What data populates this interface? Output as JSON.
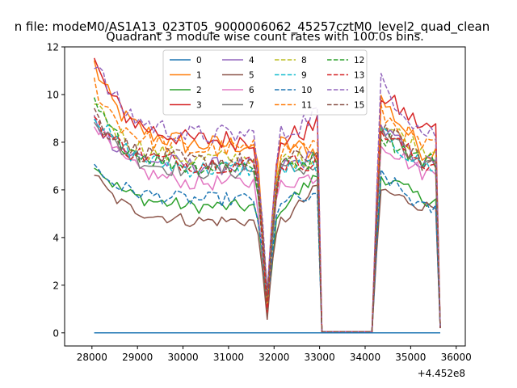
{
  "header": {
    "suptitle": "n file: modeM0/AS1A13_023T05_9000006062_45257cztM0_level2_quad_clean",
    "title": "Quadrant 3 module wise count rates with 100.0s bins."
  },
  "chart_data": {
    "type": "line",
    "title": "Quadrant 3 module wise count rates with 100.0s bins.",
    "xlabel": "",
    "ylabel": "",
    "x_offset_label": "+4.452e8",
    "xlim": [
      27400,
      36200
    ],
    "ylim": [
      -0.55,
      12.0
    ],
    "xticks": [
      28000,
      29000,
      30000,
      31000,
      32000,
      33000,
      34000,
      35000,
      36000
    ],
    "yticks": [
      0,
      2,
      4,
      6,
      8,
      10,
      12
    ],
    "xtick_labels": [
      "28000",
      "29000",
      "30000",
      "31000",
      "32000",
      "33000",
      "34000",
      "35000",
      "36000"
    ],
    "ytick_labels": [
      "0",
      "2",
      "4",
      "6",
      "8",
      "10",
      "12"
    ],
    "legend": {
      "placement": "top-center",
      "columns": 4
    },
    "grid": false,
    "segments": {
      "seg1": {
        "x_start": 28050,
        "x_end": 32950,
        "step": 100
      },
      "gap1": {
        "x_start": 33050,
        "x_end": 34150
      },
      "seg2": {
        "x_start": 34250,
        "x_end": 35650,
        "step": 100
      }
    },
    "series": [
      {
        "name": "0",
        "color": "#1f77b4",
        "dash": "solid",
        "constant": 0.0
      },
      {
        "name": "1",
        "color": "#ff7f0e",
        "dash": "solid",
        "start": 11.3,
        "plateau": 7.9,
        "pre": 7.6,
        "seg2_peak": 9.8,
        "seg2_end": 7.6
      },
      {
        "name": "2",
        "color": "#2ca02c",
        "dash": "solid",
        "start": 7.2,
        "plateau": 5.3,
        "pre": 6.6,
        "seg2_peak": 6.6,
        "seg2_end": 5.6
      },
      {
        "name": "3",
        "color": "#d62728",
        "dash": "solid",
        "start": 11.4,
        "plateau": 8.1,
        "pre": 8.7,
        "seg2_peak": 10.0,
        "seg2_end": 8.6
      },
      {
        "name": "4",
        "color": "#9467bd",
        "dash": "solid",
        "start": 9.0,
        "plateau": 7.0,
        "pre": 7.4,
        "seg2_peak": 8.6,
        "seg2_end": 7.1
      },
      {
        "name": "5",
        "color": "#8c564b",
        "dash": "solid",
        "start": 6.7,
        "plateau": 4.7,
        "pre": 6.1,
        "seg2_peak": 6.0,
        "seg2_end": 5.3
      },
      {
        "name": "6",
        "color": "#e377c2",
        "dash": "solid",
        "start": 9.0,
        "plateau": 6.3,
        "pre": 6.6,
        "seg2_peak": 8.0,
        "seg2_end": 6.7
      },
      {
        "name": "7",
        "color": "#7f7f7f",
        "dash": "solid",
        "start": 9.2,
        "plateau": 6.8,
        "pre": 7.0,
        "seg2_peak": 8.4,
        "seg2_end": 6.9
      },
      {
        "name": "8",
        "color": "#bcbd22",
        "dash": "dashed",
        "start": 9.9,
        "plateau": 7.3,
        "pre": 7.3,
        "seg2_peak": 8.8,
        "seg2_end": 7.7
      },
      {
        "name": "9",
        "color": "#17becf",
        "dash": "dashed",
        "start": 9.3,
        "plateau": 6.9,
        "pre": 7.0,
        "seg2_peak": 8.3,
        "seg2_end": 7.0
      },
      {
        "name": "10",
        "color": "#1f77b4",
        "dash": "dashed",
        "start": 7.0,
        "plateau": 5.6,
        "pre": 5.6,
        "seg2_peak": 6.7,
        "seg2_end": 5.2
      },
      {
        "name": "11",
        "color": "#ff7f0e",
        "dash": "dashed",
        "start": 10.5,
        "plateau": 7.7,
        "pre": 7.9,
        "seg2_peak": 9.2,
        "seg2_end": 7.8
      },
      {
        "name": "12",
        "color": "#2ca02c",
        "dash": "dashed",
        "start": 9.7,
        "plateau": 7.0,
        "pre": 7.3,
        "seg2_peak": 8.3,
        "seg2_end": 7.2
      },
      {
        "name": "13",
        "color": "#d62728",
        "dash": "dashed",
        "start": 9.1,
        "plateau": 7.1,
        "pre": 7.2,
        "seg2_peak": 8.5,
        "seg2_end": 7.1
      },
      {
        "name": "14",
        "color": "#9467bd",
        "dash": "dashed",
        "start": 11.5,
        "plateau": 8.3,
        "pre": 9.3,
        "seg2_peak": 10.5,
        "seg2_end": 8.4
      },
      {
        "name": "15",
        "color": "#8c564b",
        "dash": "dashed",
        "start": 9.3,
        "plateau": 7.2,
        "pre": 7.5,
        "seg2_peak": 8.7,
        "seg2_end": 7.1
      }
    ]
  }
}
